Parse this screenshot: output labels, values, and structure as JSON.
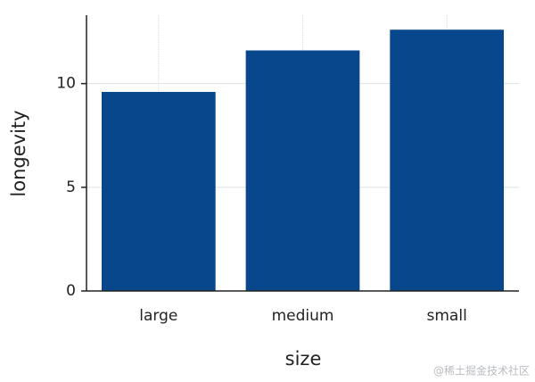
{
  "chart_data": {
    "type": "bar",
    "x_label": "size",
    "y_label": "longevity",
    "categories": [
      "large",
      "medium",
      "small"
    ],
    "values": [
      9.6,
      11.6,
      12.6
    ],
    "color": "#08478c",
    "ylim": [
      0,
      13.3
    ],
    "yticks": [
      0,
      5,
      10
    ],
    "grid": true
  },
  "watermark": "@稀土掘金技术社区"
}
